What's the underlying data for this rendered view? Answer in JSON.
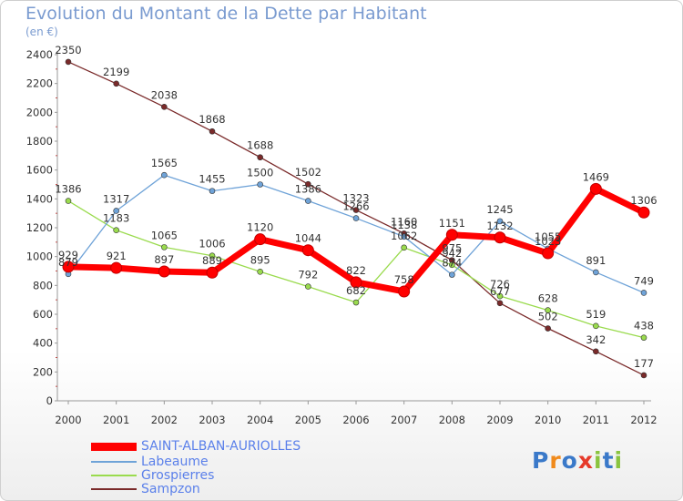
{
  "title": "Evolution du Montant de la Dette par Habitant",
  "unit": "(en €)",
  "logo": {
    "text": "Proxiti",
    "colors": [
      "#3a79c9",
      "#f08a1c",
      "#3a79c9",
      "#e63a2a",
      "#8ac43f",
      "#3a79c9",
      "#8ac43f"
    ]
  },
  "chart_data": {
    "type": "line",
    "title": "Evolution du Montant de la Dette par Habitant",
    "ylabel": "(en €)",
    "xlabel": "",
    "x": [
      "2000",
      "2001",
      "2002",
      "2003",
      "2004",
      "2005",
      "2006",
      "2007",
      "2008",
      "2009",
      "2010",
      "2011",
      "2012"
    ],
    "ylim": [
      0,
      2400
    ],
    "yticks": [
      0,
      200,
      400,
      600,
      800,
      1000,
      1200,
      1400,
      1600,
      1800,
      2000,
      2200,
      2400
    ],
    "grid": false,
    "legend": "bottom-left",
    "series": [
      {
        "name": "SAINT-ALBAN-AURIOLLES",
        "color": "#ff0000",
        "values": [
          929,
          921,
          897,
          889,
          1120,
          1044,
          822,
          758,
          1151,
          1132,
          1023,
          1469,
          1306
        ],
        "labels": [
          "929",
          "921",
          "897",
          "889",
          "1120",
          "1044",
          "822",
          "758",
          "1151",
          "1132",
          "1023",
          "1469",
          "1306"
        ]
      },
      {
        "name": "Labeaume",
        "color": "#6fa3d8",
        "values": [
          879,
          1317,
          1565,
          1455,
          1500,
          1386,
          1266,
          1138,
          874,
          1245,
          1055,
          891,
          749
        ],
        "labels": [
          "879",
          "1317",
          "1565",
          "1455",
          "1500",
          "1386",
          "1266",
          "1138",
          "874",
          "1245",
          "1055",
          "891",
          "749"
        ]
      },
      {
        "name": "Grospierres",
        "color": "#9adb4e",
        "values": [
          1386,
          1183,
          1065,
          1006,
          895,
          792,
          682,
          1062,
          942,
          726,
          628,
          519,
          438
        ],
        "labels": [
          "1386",
          "1183",
          "1065",
          "1006",
          "895",
          "792",
          "682",
          "1062",
          "942",
          "726",
          "628",
          "519",
          "438"
        ]
      },
      {
        "name": "Sampzon",
        "color": "#7a2a2a",
        "values": [
          2350,
          2199,
          2038,
          1868,
          1688,
          1502,
          1323,
          1160,
          975,
          677,
          502,
          342,
          177
        ],
        "labels": [
          "2350",
          "2199",
          "2038",
          "1868",
          "1688",
          "1502",
          "1323",
          "1160",
          "975",
          "677",
          "502",
          "342",
          "177"
        ]
      }
    ]
  }
}
